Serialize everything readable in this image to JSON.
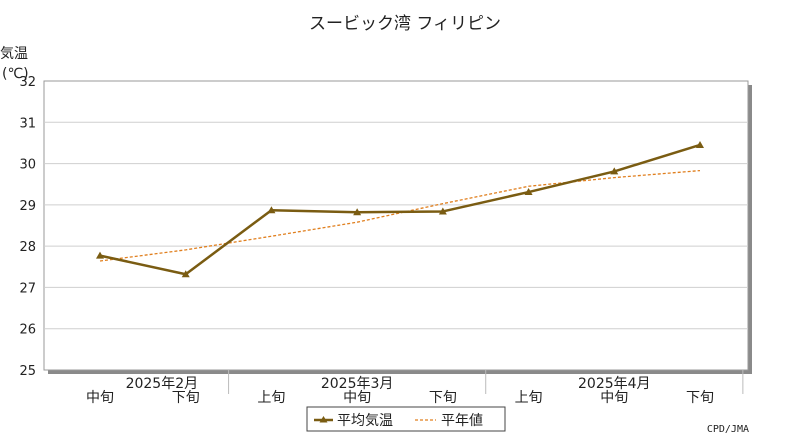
{
  "chart_data": {
    "type": "line",
    "title": "スービック湾 フィリピン",
    "ylabel": "気温",
    "yunit": "(℃)",
    "ylim": [
      25,
      32
    ],
    "yticks": [
      25,
      26,
      27,
      28,
      29,
      30,
      31,
      32
    ],
    "grid": true,
    "categories": [
      "中旬",
      "下旬",
      "上旬",
      "中旬",
      "下旬",
      "上旬",
      "中旬",
      "下旬"
    ],
    "months": [
      {
        "label": "2025年2月",
        "from": 0,
        "to": 1
      },
      {
        "label": "2025年3月",
        "from": 2,
        "to": 4
      },
      {
        "label": "2025年4月",
        "from": 5,
        "to": 7
      }
    ],
    "series": [
      {
        "name": "平均気温",
        "values": [
          27.77,
          27.32,
          28.87,
          28.82,
          28.84,
          29.31,
          29.81,
          30.45
        ],
        "color": "#7a5c12",
        "style": "solid-triangle"
      },
      {
        "name": "平年値",
        "values": [
          27.64,
          27.91,
          28.24,
          28.58,
          29.03,
          29.45,
          29.66,
          29.83
        ],
        "color": "#e07f1e",
        "style": "dashed"
      }
    ],
    "legend": "bottom-center",
    "credit": "CPD/JMA"
  }
}
